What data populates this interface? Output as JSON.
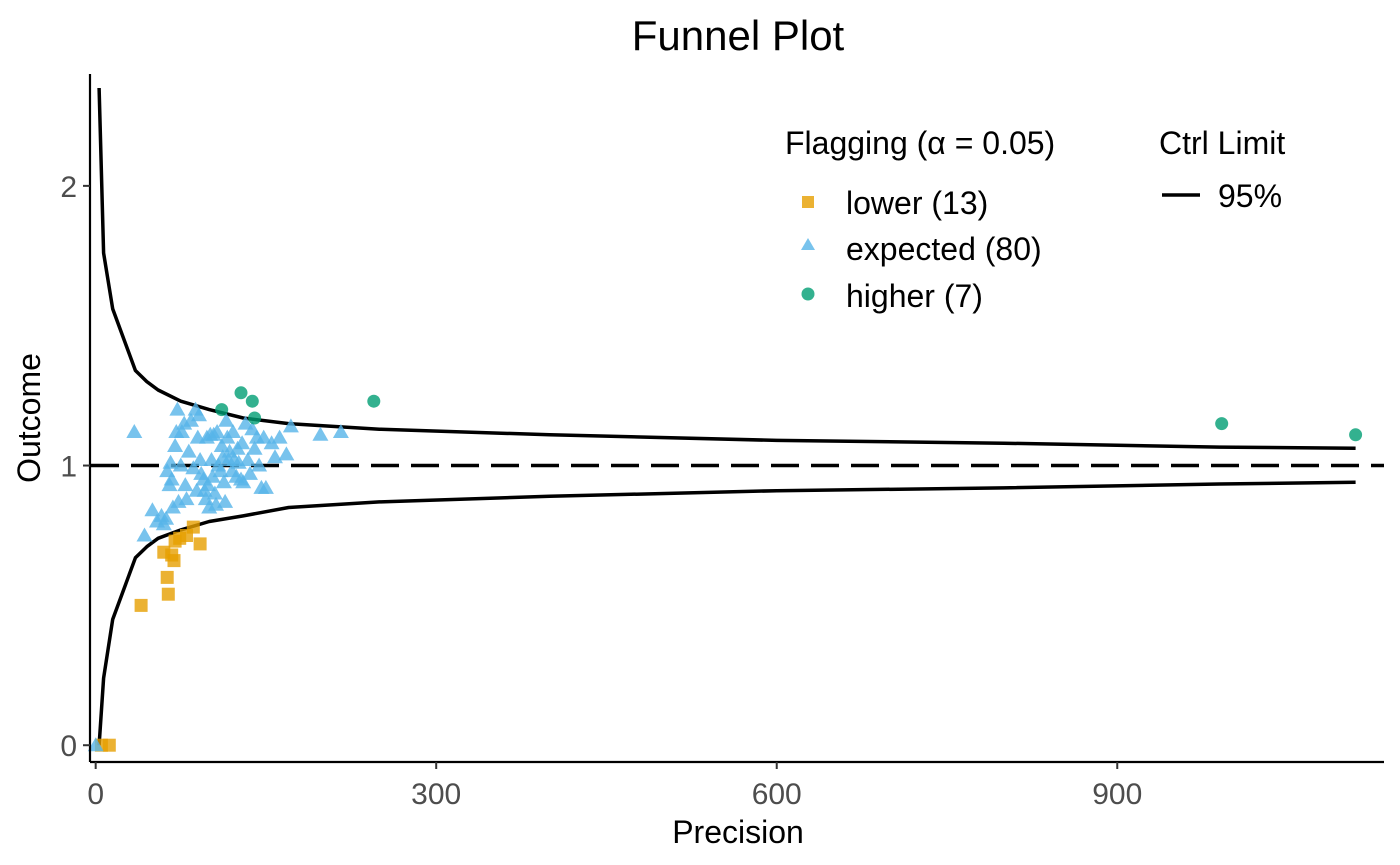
{
  "chart_data": {
    "type": "scatter",
    "title": "Funnel Plot",
    "xlabel": "Precision",
    "ylabel": "Outcome",
    "xlim": [
      -5,
      1135
    ],
    "ylim": [
      -0.06,
      2.4
    ],
    "x_ticks": [
      0,
      300,
      600,
      900
    ],
    "y_ticks": [
      0,
      1,
      2
    ],
    "x_tick_labels": [
      "0",
      "300",
      "600",
      "900"
    ],
    "y_tick_labels": [
      "0",
      "1",
      "2"
    ],
    "target": 1,
    "legend": {
      "flag_title": "Flagging (α = 0.05)",
      "limit_title": "Ctrl Limit",
      "limit_label": "95%",
      "placement": "top-right"
    },
    "series": [
      {
        "name": "lower",
        "label": "lower (13)",
        "shape": "square",
        "color": "#E69F00",
        "x": [
          5,
          12,
          40,
          60,
          63,
          64,
          67,
          69,
          70,
          74,
          80,
          86,
          92
        ],
        "y": [
          0.0,
          0.0,
          0.5,
          0.69,
          0.6,
          0.54,
          0.68,
          0.66,
          0.73,
          0.74,
          0.75,
          0.78,
          0.72
        ]
      },
      {
        "name": "expected",
        "label": "expected (80)",
        "shape": "triangle",
        "color": "#56B4E9",
        "x": [
          0,
          34,
          43,
          50,
          54,
          58,
          60,
          62,
          63,
          65,
          66,
          67,
          68,
          70,
          71,
          72,
          73,
          75,
          76,
          78,
          79,
          80,
          82,
          84,
          86,
          88,
          89,
          90,
          91,
          92,
          93,
          95,
          96,
          97,
          98,
          99,
          100,
          101,
          102,
          103,
          104,
          105,
          106,
          107,
          108,
          110,
          111,
          112,
          113,
          114,
          115,
          116,
          117,
          118,
          120,
          121,
          122,
          124,
          125,
          126,
          128,
          129,
          130,
          132,
          134,
          136,
          138,
          140,
          142,
          144,
          146,
          148,
          150,
          155,
          158,
          162,
          168,
          172,
          198,
          216
        ],
        "y": [
          0.0,
          1.12,
          0.75,
          0.84,
          0.8,
          0.82,
          0.79,
          0.81,
          0.98,
          0.93,
          1.01,
          0.95,
          0.85,
          1.07,
          1.12,
          1.2,
          0.87,
          1.0,
          1.12,
          1.15,
          0.93,
          0.88,
          1.05,
          1.16,
          0.99,
          1.2,
          0.91,
          1.1,
          1.18,
          1.02,
          0.97,
          0.95,
          0.91,
          0.88,
          1.1,
          0.93,
          0.85,
          1.11,
          1.02,
          0.96,
          1.11,
          0.9,
          0.86,
          1.12,
          1.0,
          0.98,
          1.07,
          1.03,
          0.94,
          0.87,
          1.16,
          1.1,
          1.02,
          1.05,
          0.98,
          1.12,
          1.02,
          0.96,
          1.06,
          1.01,
          0.95,
          1.08,
          0.94,
          1.15,
          1.02,
          0.97,
          1.13,
          1.06,
          1.1,
          1.0,
          0.92,
          1.1,
          0.92,
          1.08,
          1.03,
          1.1,
          1.04,
          1.14,
          1.11,
          1.12
        ]
      },
      {
        "name": "higher",
        "label": "higher (7)",
        "shape": "circle",
        "color": "#009E73",
        "x": [
          111,
          128,
          138,
          140,
          245,
          992,
          1110
        ],
        "y": [
          1.2,
          1.26,
          1.23,
          1.17,
          1.23,
          1.15,
          1.11
        ]
      }
    ],
    "limits_95": {
      "x": [
        3,
        7,
        15,
        35,
        45,
        55,
        75,
        100,
        130,
        170,
        250,
        400,
        600,
        800,
        990,
        1110
      ],
      "upper": [
        2.35,
        1.76,
        1.56,
        1.34,
        1.3,
        1.27,
        1.23,
        1.2,
        1.17,
        1.15,
        1.13,
        1.11,
        1.09,
        1.08,
        1.066,
        1.062
      ],
      "lower": [
        0.0,
        0.24,
        0.45,
        0.67,
        0.71,
        0.74,
        0.77,
        0.8,
        0.82,
        0.85,
        0.87,
        0.89,
        0.91,
        0.92,
        0.934,
        0.94
      ]
    },
    "grid": false
  }
}
